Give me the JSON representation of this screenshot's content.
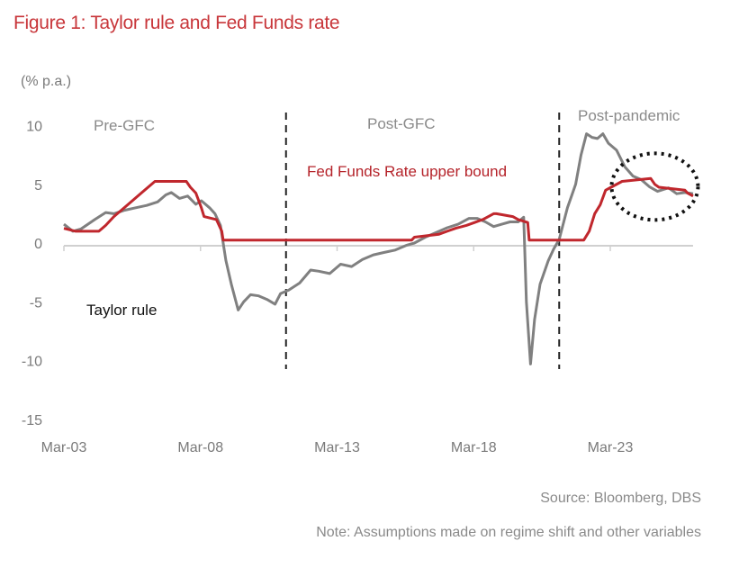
{
  "figure": {
    "title": "Figure 1: Taylor rule and Fed Funds rate",
    "unit_label": "(% p.a.)",
    "source": "Source: Bloomberg, DBS",
    "note": "Note: Assumptions made on regime shift and other variables"
  },
  "chart_data": {
    "type": "line",
    "title": "Figure 1: Taylor rule and Fed Funds rate",
    "xlabel": "",
    "ylabel": "(% p.a.)",
    "ylim": [
      -15,
      10
    ],
    "yticks": [
      10,
      5,
      0,
      -5,
      -10,
      -15
    ],
    "ytick_labels": [
      "10",
      "5",
      "0",
      "-5",
      "-10",
      "-15"
    ],
    "xlim_years": [
      2003.17,
      2026.2
    ],
    "xticks_years": [
      2003.17,
      2008.17,
      2013.17,
      2018.17,
      2023.17
    ],
    "xtick_labels": [
      "Mar-03",
      "Mar-08",
      "Mar-13",
      "Mar-18",
      "Mar-23"
    ],
    "grid": false,
    "regions": [
      {
        "label": "Pre-GFC"
      },
      {
        "label": "Post-GFC"
      },
      {
        "label": "Post-pandemic"
      }
    ],
    "regime_breaks_years": [
      2011.3,
      2021.3
    ],
    "annotations": [
      {
        "text": "Fed Funds Rate upper bound",
        "color": "#b5232a"
      },
      {
        "text": "Taylor rule",
        "color": "#111111"
      }
    ],
    "highlight_ellipse": {
      "center_year": 2024.8,
      "center_value": 4.8,
      "note": "dotted ellipse around recent convergence"
    },
    "series": [
      {
        "name": "Fed Funds Rate upper bound",
        "color": "#c0272d",
        "x": [
          2003.17,
          2003.6,
          2004.45,
          2004.7,
          2005.0,
          2005.5,
          2006.0,
          2006.5,
          2007.65,
          2007.8,
          2008.0,
          2008.2,
          2008.3,
          2008.75,
          2008.85,
          2008.95,
          2009.0,
          2015.9,
          2016.0,
          2016.9,
          2017.2,
          2017.5,
          2017.9,
          2018.2,
          2018.5,
          2018.9,
          2019.0,
          2019.6,
          2019.8,
          2020.15,
          2020.2,
          2022.2,
          2022.4,
          2022.6,
          2022.8,
          2023.0,
          2023.2,
          2023.6,
          2024.65,
          2024.8,
          2024.95,
          2025.9,
          2026.0,
          2026.2
        ],
        "y": [
          1.25,
          1.0,
          1.0,
          1.5,
          2.25,
          3.25,
          4.25,
          5.25,
          5.25,
          4.75,
          4.25,
          3.0,
          2.25,
          2.0,
          1.5,
          1.0,
          0.25,
          0.25,
          0.5,
          0.75,
          1.0,
          1.25,
          1.5,
          1.75,
          2.0,
          2.5,
          2.5,
          2.25,
          2.0,
          1.75,
          0.25,
          0.25,
          1.0,
          2.5,
          3.25,
          4.5,
          4.75,
          5.25,
          5.5,
          5.0,
          4.75,
          4.5,
          4.25,
          4.0
        ]
      },
      {
        "name": "Taylor rule",
        "color": "#808080",
        "x": [
          2003.17,
          2003.5,
          2003.8,
          2004.3,
          2004.7,
          2005.0,
          2005.4,
          2005.8,
          2006.2,
          2006.6,
          2006.9,
          2007.1,
          2007.4,
          2007.7,
          2008.0,
          2008.2,
          2008.5,
          2008.7,
          2008.9,
          2009.1,
          2009.3,
          2009.55,
          2009.75,
          2010.0,
          2010.3,
          2010.6,
          2010.9,
          2011.1,
          2011.4,
          2011.8,
          2012.2,
          2012.5,
          2012.9,
          2013.3,
          2013.7,
          2014.1,
          2014.5,
          2014.9,
          2015.3,
          2015.7,
          2016.0,
          2016.4,
          2016.8,
          2017.2,
          2017.6,
          2018.0,
          2018.3,
          2018.6,
          2018.9,
          2019.2,
          2019.5,
          2019.8,
          2020.0,
          2020.1,
          2020.25,
          2020.4,
          2020.6,
          2020.9,
          2021.1,
          2021.3,
          2021.6,
          2021.9,
          2022.1,
          2022.3,
          2022.5,
          2022.7,
          2022.9,
          2023.1,
          2023.4,
          2023.7,
          2024.0,
          2024.3,
          2024.6,
          2024.9,
          2025.3,
          2025.6,
          2025.9,
          2026.2
        ],
        "y": [
          1.6,
          1.0,
          1.2,
          2.0,
          2.6,
          2.5,
          2.8,
          3.0,
          3.2,
          3.5,
          4.1,
          4.3,
          3.8,
          4.0,
          3.3,
          3.6,
          3.0,
          2.5,
          1.5,
          -1.5,
          -3.5,
          -5.7,
          -5.0,
          -4.4,
          -4.5,
          -4.8,
          -5.2,
          -4.3,
          -4.0,
          -3.4,
          -2.3,
          -2.4,
          -2.6,
          -1.8,
          -2.0,
          -1.4,
          -1.0,
          -0.8,
          -0.6,
          -0.2,
          0.0,
          0.5,
          0.9,
          1.3,
          1.6,
          2.1,
          2.1,
          1.8,
          1.4,
          1.6,
          1.8,
          1.8,
          2.2,
          -5.0,
          -10.3,
          -6.5,
          -3.5,
          -1.5,
          -0.5,
          0.3,
          3.0,
          5.0,
          7.5,
          9.3,
          9.0,
          8.9,
          9.3,
          8.5,
          7.9,
          6.5,
          5.7,
          5.4,
          4.8,
          4.4,
          4.7,
          4.2,
          4.3,
          4.2
        ]
      }
    ]
  }
}
